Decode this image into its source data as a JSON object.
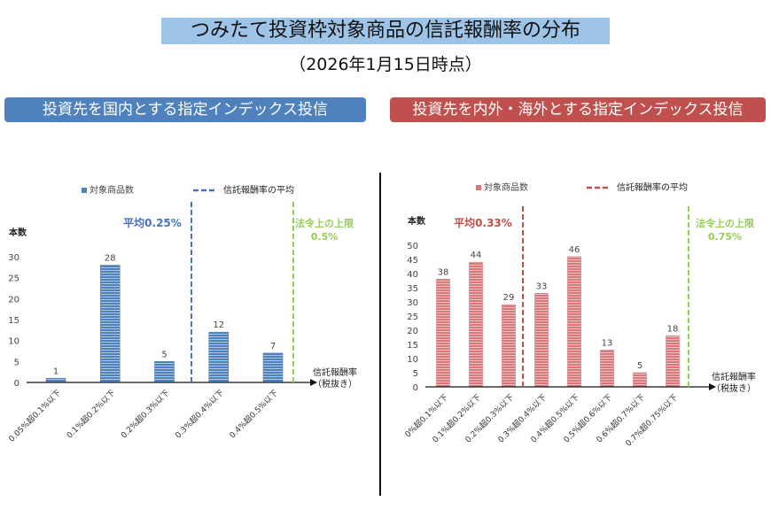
{
  "title": "つみたて投資枠対象商品の信託報酬率の分布",
  "subtitle": "（2026年1月15日時点）",
  "chart_data": [
    {
      "type": "bar",
      "banner": "投資先を国内とする指定インデックス投信",
      "legend_bar": "対象商品数",
      "legend_line": "信託報酬率の平均",
      "ylabel": "本数",
      "xlabel": "信託報酬率",
      "xlabel2": "（税抜き）",
      "categories": [
        "0.05%超0.1%以下",
        "0.1%超0.2%以下",
        "0.2%超0.3%以下",
        "0.3%超0.4%以下",
        "0.4%超0.5%以下"
      ],
      "values": [
        1,
        28,
        5,
        12,
        7
      ],
      "yticks": [
        0,
        5,
        10,
        15,
        20,
        25,
        30
      ],
      "ylim": [
        0,
        30
      ],
      "average_label": "平均0.25%",
      "limit_label": [
        "法令上の上限",
        "0.5%"
      ],
      "color": "#4f81bd",
      "line_color": "#4472c4",
      "limit_color": "#92d050",
      "avg_position_after_index": 2
    },
    {
      "type": "bar",
      "banner": "投資先を内外・海外とする指定インデックス投信",
      "legend_bar": "対象商品数",
      "legend_line": "信託報酬率の平均",
      "ylabel": "本数",
      "xlabel": "信託報酬率",
      "xlabel2": "（税抜き）",
      "categories": [
        "0%超0.1%以下",
        "0.1%超0.2%以下",
        "0.2%超0.3%以下",
        "0.3%超0.4%以下",
        "0.4%超0.5%以下",
        "0.5%超0.6%以下",
        "0.6%超0.7%以下",
        "0.7%超0.75%以下"
      ],
      "values": [
        38,
        44,
        29,
        33,
        46,
        13,
        5,
        18
      ],
      "yticks": [
        0,
        5,
        10,
        15,
        20,
        25,
        30,
        35,
        40,
        45,
        50
      ],
      "ylim": [
        0,
        50
      ],
      "average_label": "平均0.33%",
      "limit_label": [
        "法令上の上限",
        "0.75%"
      ],
      "color": "#d9787a",
      "line_color": "#c0504d",
      "limit_color": "#92d050",
      "avg_position_after_index": 2
    }
  ]
}
